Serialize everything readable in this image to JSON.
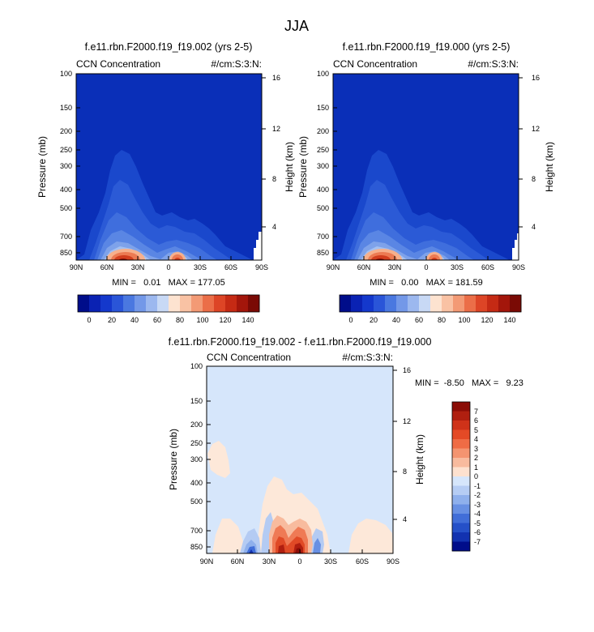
{
  "page": {
    "title": "JJA"
  },
  "chart_data": [
    {
      "type": "heatmap",
      "title": "f.e11.rbn.F2000.f19_f19.002 (yrs 2-5)",
      "left_label": "CCN Concentration",
      "right_label": "#/cm:S:3:N:",
      "xlabel": "",
      "ylabel": "Pressure (mb)",
      "y2label": "Height (km)",
      "x_tick_labels": [
        "90N",
        "60N",
        "30N",
        "0",
        "30S",
        "60S",
        "90S"
      ],
      "x_ticks": [
        90,
        60,
        30,
        0,
        -30,
        -60,
        -90
      ],
      "y_tick_labels": [
        "100",
        "150",
        "200",
        "250",
        "300",
        "400",
        "500",
        "700",
        "850"
      ],
      "y_ticks": [
        100,
        150,
        200,
        250,
        300,
        400,
        500,
        700,
        850
      ],
      "y2_tick_labels": [
        "16",
        "12",
        "8",
        "4"
      ],
      "y2_ticks": [
        16,
        12,
        8,
        4
      ],
      "xlim": [
        90,
        -90
      ],
      "ylim": [
        1000,
        100
      ],
      "y_scale": "log",
      "stats_text": "MIN =   0.01   MAX = 177.05",
      "min": 0.01,
      "max": 177.05
    },
    {
      "type": "heatmap",
      "title": "f.e11.rbn.F2000.f19_f19.000 (yrs 2-5)",
      "left_label": "CCN Concentration",
      "right_label": "#/cm:S:3:N:",
      "xlabel": "",
      "ylabel": "Pressure (mb)",
      "y2label": "Height (km)",
      "x_tick_labels": [
        "90N",
        "60N",
        "30N",
        "0",
        "30S",
        "60S",
        "90S"
      ],
      "x_ticks": [
        90,
        60,
        30,
        0,
        -30,
        -60,
        -90
      ],
      "y_tick_labels": [
        "100",
        "150",
        "200",
        "250",
        "300",
        "400",
        "500",
        "700",
        "850"
      ],
      "y_ticks": [
        100,
        150,
        200,
        250,
        300,
        400,
        500,
        700,
        850
      ],
      "y2_tick_labels": [
        "16",
        "12",
        "8",
        "4"
      ],
      "y2_ticks": [
        16,
        12,
        8,
        4
      ],
      "xlim": [
        90,
        -90
      ],
      "ylim": [
        1000,
        100
      ],
      "y_scale": "log",
      "stats_text": "MIN =   0.00   MAX = 181.59",
      "min": 0.0,
      "max": 181.59
    },
    {
      "type": "heatmap",
      "title": "f.e11.rbn.F2000.f19_f19.002 - f.e11.rbn.F2000.f19_f19.000",
      "left_label": "CCN Concentration",
      "right_label": "#/cm:S:3:N:",
      "xlabel": "",
      "ylabel": "Pressure (mb)",
      "y2label": "Height (km)",
      "x_tick_labels": [
        "90N",
        "60N",
        "30N",
        "0",
        "30S",
        "60S",
        "90S"
      ],
      "x_ticks": [
        90,
        60,
        30,
        0,
        -30,
        -60,
        -90
      ],
      "y_tick_labels": [
        "100",
        "150",
        "200",
        "250",
        "300",
        "400",
        "500",
        "700",
        "850"
      ],
      "y_ticks": [
        100,
        150,
        200,
        250,
        300,
        400,
        500,
        700,
        850
      ],
      "y2_tick_labels": [
        "16",
        "12",
        "8",
        "4"
      ],
      "y2_ticks": [
        16,
        12,
        8,
        4
      ],
      "xlim": [
        90,
        -90
      ],
      "ylim": [
        1000,
        100
      ],
      "y_scale": "log",
      "stats_text": "MIN =  -8.50   MAX =   9.23",
      "min": -8.5,
      "max": 9.23
    }
  ],
  "colorbars": {
    "concentration": {
      "orientation": "horizontal",
      "tick_labels": [
        "0",
        "20",
        "40",
        "60",
        "80",
        "100",
        "120",
        "140"
      ],
      "colors": [
        "#000d8a",
        "#0a22b3",
        "#1438cc",
        "#2a55d8",
        "#4a78e0",
        "#7398e8",
        "#9cb8ef",
        "#c8d9f5",
        "#fde3d0",
        "#f9c2a4",
        "#f39a75",
        "#eb6e48",
        "#dd4526",
        "#c52a14",
        "#a3160b",
        "#7a0a05"
      ]
    },
    "difference": {
      "orientation": "vertical",
      "tick_labels": [
        "7",
        "6",
        "5",
        "4",
        "3",
        "2",
        "1",
        "0",
        "-1",
        "-2",
        "-3",
        "-4",
        "-5",
        "-6",
        "-7"
      ],
      "colors": [
        "#8b0d06",
        "#b01f10",
        "#cf3219",
        "#e44a26",
        "#ef6c45",
        "#f49470",
        "#f8bb9e",
        "#fde1cf",
        "#d6e6fb",
        "#b6cdf4",
        "#8fb0ec",
        "#6890e3",
        "#416ed8",
        "#2550c8",
        "#1232b0",
        "#000d8a"
      ]
    }
  }
}
